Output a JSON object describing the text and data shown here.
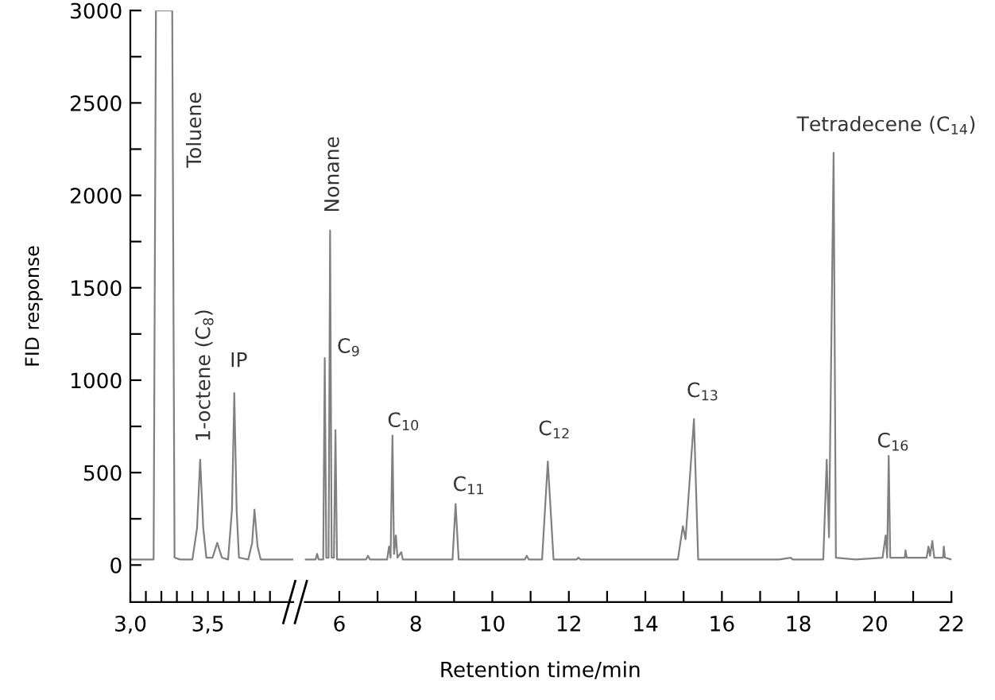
{
  "chart_data": [
    {
      "type": "line",
      "ylabel": "FID response",
      "xlim": [
        3.0,
        4.05
      ],
      "ylim": [
        -200,
        3000
      ],
      "grid": false,
      "marker": "none",
      "line_style": "solid",
      "xticks": [
        {
          "value": 3.0,
          "label": "3,0"
        },
        {
          "value": 3.1,
          "label": null
        },
        {
          "value": 3.2,
          "label": null
        },
        {
          "value": 3.3,
          "label": null
        },
        {
          "value": 3.4,
          "label": null
        },
        {
          "value": 3.5,
          "label": "3,5"
        },
        {
          "value": 3.6,
          "label": null
        },
        {
          "value": 3.7,
          "label": null
        },
        {
          "value": 3.8,
          "label": null
        },
        {
          "value": 3.9,
          "label": null
        }
      ],
      "yticks": [
        0,
        {
          "value": 250,
          "label": null
        },
        500,
        {
          "value": 750,
          "label": null
        },
        1000,
        {
          "value": 1250,
          "label": null
        },
        1500,
        {
          "value": 1750,
          "label": null
        },
        2000,
        {
          "value": 2250,
          "label": null
        },
        2500,
        {
          "value": 2750,
          "label": null
        },
        3000
      ],
      "series": [
        {
          "color": "#808080",
          "x": [
            3.0,
            3.14,
            3.15,
            3.165,
            3.27,
            3.285,
            3.32,
            3.4,
            3.43,
            3.45,
            3.47,
            3.49,
            3.53,
            3.56,
            3.59,
            3.63,
            3.655,
            3.67,
            3.685,
            3.7,
            3.76,
            3.785,
            3.8,
            3.82,
            3.84,
            3.95,
            4.05
          ],
          "values": [
            30,
            30,
            30,
            3000,
            3000,
            40,
            30,
            30,
            200,
            570,
            200,
            40,
            40,
            120,
            40,
            30,
            300,
            930,
            300,
            40,
            30,
            120,
            300,
            100,
            30,
            30,
            30
          ]
        }
      ],
      "annotations": [
        "Toluene",
        {
          "text": "1-octene (C$_{8}$)",
          "x": 3.45,
          "y": 570
        },
        {
          "text": "IP",
          "x": 3.67,
          "y": 930
        }
      ]
    },
    {
      "type": "line",
      "xlabel": "Retention time/min",
      "xlim": [
        5.1,
        22
      ],
      "ylim": [
        -200,
        3000
      ],
      "grid": false,
      "marker": "none",
      "line_style": "solid",
      "tick_labels": "x",
      "xticks": [
        6,
        {
          "value": 7,
          "label": null
        },
        8,
        {
          "value": 9,
          "label": null
        },
        10,
        {
          "value": 11,
          "label": null
        },
        12,
        {
          "value": 13,
          "label": null
        },
        14,
        {
          "value": 15,
          "label": null
        },
        16,
        {
          "value": 17,
          "label": null
        },
        18,
        {
          "value": 19,
          "label": null
        },
        20,
        {
          "value": 21,
          "label": null
        },
        22
      ],
      "series": [
        {
          "color": "#808080",
          "x": [
            5.1,
            5.38,
            5.42,
            5.46,
            5.58,
            5.62,
            5.66,
            5.72,
            5.76,
            5.8,
            5.86,
            5.9,
            5.94,
            6.7,
            6.75,
            6.8,
            7.25,
            7.3,
            7.34,
            7.39,
            7.43,
            7.48,
            7.52,
            7.62,
            7.66,
            8.5,
            8.96,
            9.04,
            9.12,
            9.3,
            10.85,
            10.9,
            10.95,
            11.3,
            11.45,
            11.6,
            12.2,
            12.25,
            12.3,
            14.85,
            14.98,
            15.05,
            15.27,
            15.38,
            17.5,
            17.8,
            17.85,
            18.65,
            18.74,
            18.8,
            18.92,
            18.98,
            19.5,
            20.2,
            20.28,
            20.32,
            20.36,
            20.4,
            20.78,
            20.8,
            20.83,
            21.35,
            21.4,
            21.44,
            21.5,
            21.55,
            21.78,
            21.8,
            21.83,
            22.0
          ],
          "values": [
            30,
            30,
            60,
            30,
            30,
            1120,
            40,
            40,
            1810,
            40,
            40,
            730,
            30,
            30,
            50,
            30,
            30,
            100,
            40,
            700,
            60,
            160,
            40,
            70,
            30,
            30,
            30,
            330,
            30,
            30,
            30,
            50,
            30,
            30,
            560,
            30,
            30,
            40,
            30,
            30,
            210,
            140,
            790,
            30,
            30,
            40,
            30,
            30,
            570,
            150,
            2230,
            40,
            30,
            40,
            160,
            40,
            590,
            40,
            40,
            80,
            40,
            40,
            100,
            50,
            130,
            40,
            40,
            100,
            40,
            30
          ]
        }
      ],
      "annotations": [
        {
          "text": "Nonane",
          "x": 5.76,
          "y": 1810
        },
        "C$_{9}$",
        {
          "text": "C$_{10}$",
          "x": 7.39,
          "y": 700
        },
        {
          "text": "C$_{11}$",
          "x": 9.04,
          "y": 330
        },
        {
          "text": "C$_{12}$",
          "x": 11.45,
          "y": 560
        },
        {
          "text": "C$_{13}$",
          "x": 15.27,
          "y": 790
        },
        {
          "text": "Tetradecene (C$_{14}$)",
          "x": 18.92,
          "y": 2230
        },
        {
          "text": "C$_{16}$",
          "x": 20.36,
          "y": 590
        }
      ]
    }
  ]
}
